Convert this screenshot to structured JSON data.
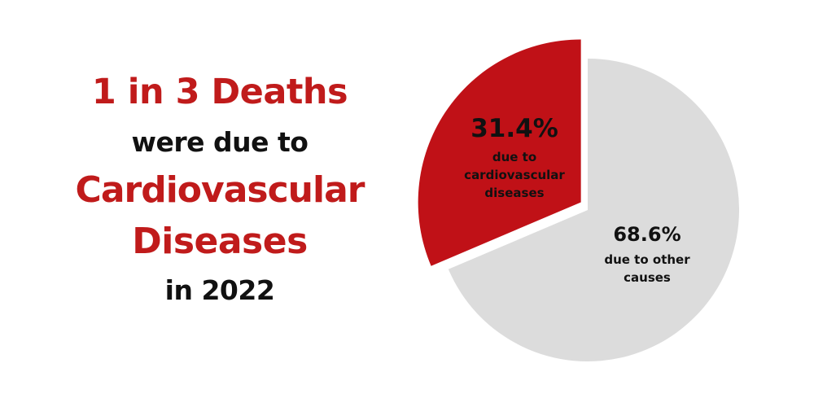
{
  "headline": {
    "line1": "1 in 3 Deaths",
    "line2": "were due to",
    "line3": "Cardiovascular",
    "line4": "Diseases",
    "line5": "in 2022"
  },
  "colors": {
    "accent_red": "#c01b1b",
    "slice_red": "#c01117",
    "slice_grey": "#dcdcdc",
    "text_dark": "#111111"
  },
  "chart_data": {
    "type": "pie",
    "title": "",
    "slices": [
      {
        "value": 31.4,
        "percent_label": "31.4%",
        "label_lines": [
          "due to",
          "cardiovascular",
          "diseases"
        ],
        "color": "#c01117"
      },
      {
        "value": 68.6,
        "percent_label": "68.6%",
        "label_lines": [
          "due to other",
          "causes"
        ],
        "color": "#dcdcdc"
      }
    ],
    "start_angle": "12 o'clock",
    "direction": "counter-clockwise for the red slice",
    "legend": "none"
  }
}
